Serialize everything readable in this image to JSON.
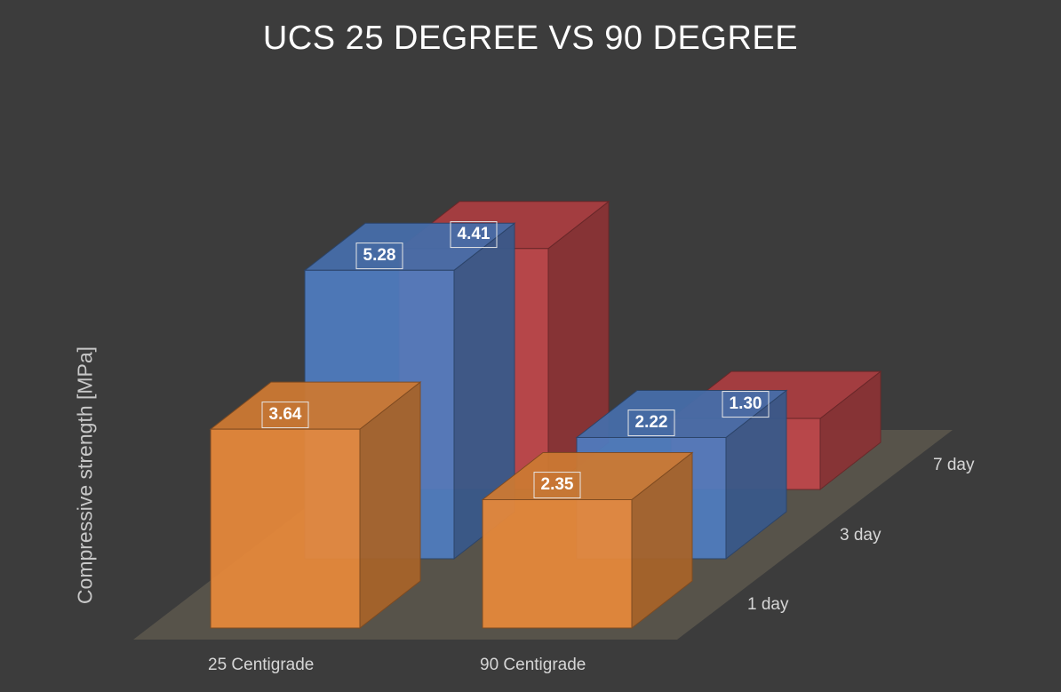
{
  "chart_data": {
    "type": "bar",
    "title": "UCS 25 DEGREE VS 90 DEGREE",
    "ylabel": "Compressive strength [MPa]",
    "xlabel": "",
    "categories": [
      "25 Centigrade",
      "90 Centigrade"
    ],
    "series": [
      {
        "name": "1 day",
        "values": [
          3.64,
          2.35
        ],
        "color": "#e8893a",
        "labels": [
          "3.64",
          "2.35"
        ]
      },
      {
        "name": "3 day",
        "values": [
          5.28,
          2.22
        ],
        "color": "#4f7cc0",
        "labels": [
          "5.28",
          "2.22"
        ]
      },
      {
        "name": "7 day",
        "values": [
          4.41,
          1.3
        ],
        "color": "#c0474a",
        "labels": [
          "4.41",
          "1.30"
        ]
      }
    ],
    "ylim": [
      0,
      6
    ],
    "grid": false,
    "style": "3d-column",
    "background": "#3c3c3c",
    "floor_color": "#5c574c"
  }
}
